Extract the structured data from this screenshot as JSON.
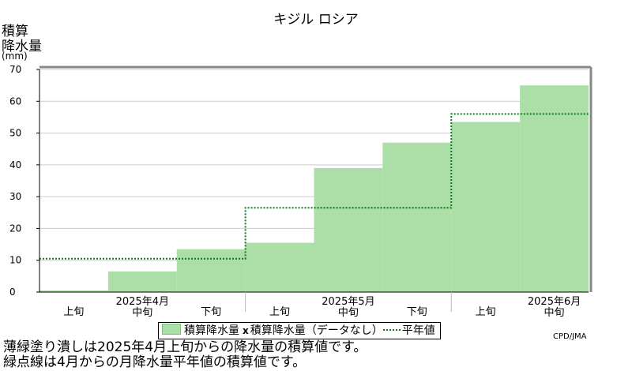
{
  "header": {
    "title": "キジル ロシア"
  },
  "yaxis": {
    "label_line1": "積算",
    "label_line2": "降水量",
    "unit": "(mm)"
  },
  "legend": {
    "bar_label": "積算降水量",
    "missing_label": "積算降水量（データなし）",
    "normal_label": "平年値"
  },
  "credit": "CPD/JMA",
  "caption": {
    "line1": "薄緑塗り潰しは2025年4月上旬からの降水量の積算値です。",
    "line2": "緑点線は4月からの月降水量平年値の積算値です。"
  },
  "colors": {
    "bar": "#acdfa8",
    "normal_line": "#0a7a1a",
    "grid": "#cccccc"
  },
  "chart_data": {
    "type": "area",
    "ylim": [
      0,
      70
    ],
    "yticks": [
      0,
      10,
      20,
      30,
      40,
      50,
      60,
      70
    ],
    "grid": true,
    "periods": [
      {
        "dekad": "上旬",
        "month": "2025年4月"
      },
      {
        "dekad": "中旬",
        "month": "2025年4月"
      },
      {
        "dekad": "下旬",
        "month": "2025年4月"
      },
      {
        "dekad": "上旬",
        "month": "2025年5月"
      },
      {
        "dekad": "中旬",
        "month": "2025年5月"
      },
      {
        "dekad": "下旬",
        "month": "2025年5月"
      },
      {
        "dekad": "上旬",
        "month": "2025年6月"
      },
      {
        "dekad": "中旬",
        "month": "2025年6月"
      }
    ],
    "month_labels": [
      "2025年4月",
      "2025年5月",
      "2025年6月"
    ],
    "series": [
      {
        "name": "積算降水量",
        "values": [
          0.5,
          6.5,
          13.5,
          15.5,
          39,
          47,
          53.5,
          65
        ]
      },
      {
        "name": "平年値",
        "months": [
          "2025年4月",
          "2025年5月",
          "2025年6月"
        ],
        "values": [
          10.5,
          26.5,
          56
        ]
      }
    ]
  }
}
